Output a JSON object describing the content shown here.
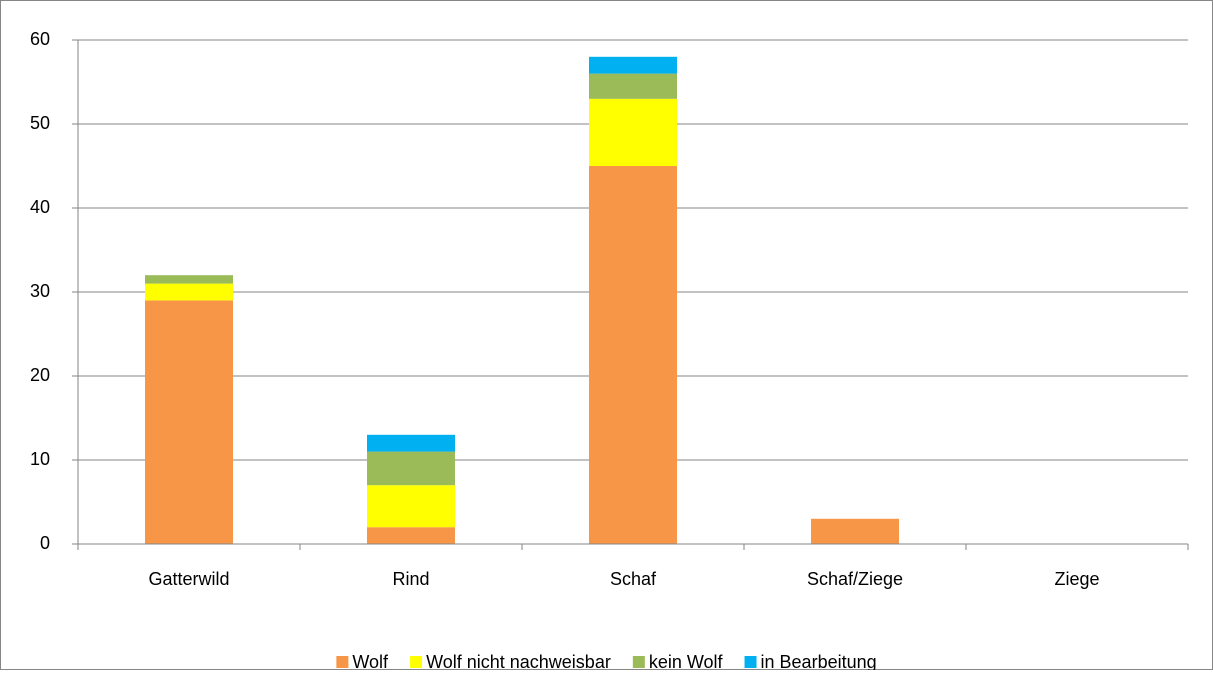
{
  "chart_data": {
    "type": "stacked_bar",
    "categories": [
      "Gatterwild",
      "Rind",
      "Schaf",
      "Schaf/Ziege",
      "Ziege"
    ],
    "series": [
      {
        "name": "Wolf",
        "color": "#f79646",
        "values": [
          29,
          2,
          45,
          3,
          0
        ]
      },
      {
        "name": "Wolf nicht nachweisbar",
        "color": "#ffff00",
        "values": [
          2,
          5,
          8,
          0,
          0
        ]
      },
      {
        "name": "kein Wolf",
        "color": "#9bbb59",
        "values": [
          1,
          4,
          3,
          0,
          0
        ]
      },
      {
        "name": "in Bearbeitung",
        "color": "#00b0f0",
        "values": [
          0,
          2,
          2,
          0,
          0
        ]
      }
    ],
    "ylim": [
      0,
      60
    ],
    "yticks": [
      0,
      10,
      20,
      30,
      40,
      50,
      60
    ],
    "grid": true,
    "legend": "bottom"
  }
}
